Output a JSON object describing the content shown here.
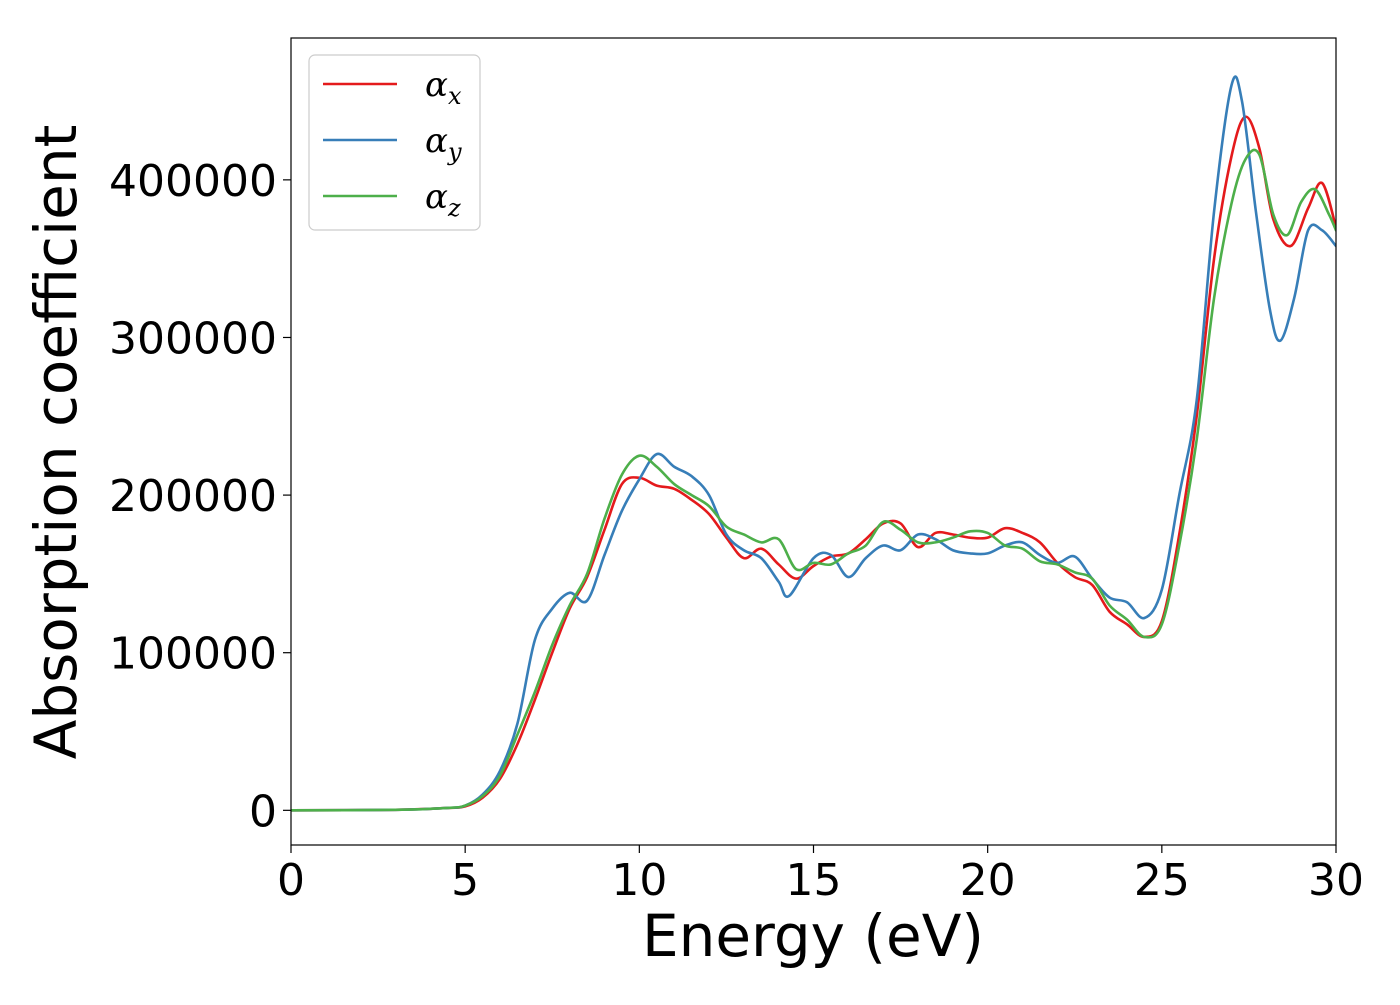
{
  "chart_data": {
    "type": "line",
    "title": "",
    "xlabel": "Energy (eV)",
    "ylabel": "Absorption coefficient",
    "xlim": [
      0,
      30
    ],
    "ylim": [
      -22000,
      490000
    ],
    "xticks": [
      0,
      5,
      10,
      15,
      20,
      25,
      30
    ],
    "xtick_labels": [
      "0",
      "5",
      "10",
      "15",
      "20",
      "25",
      "30"
    ],
    "yticks": [
      0,
      100000,
      200000,
      300000,
      400000
    ],
    "ytick_labels": [
      "0",
      "100000",
      "200000",
      "300000",
      "400000"
    ],
    "grid": false,
    "legend": {
      "position": "top-left"
    },
    "series": [
      {
        "name": "α_x",
        "label_base": "α",
        "label_sub": "x",
        "color": "#e41a1c",
        "points": [
          [
            0,
            0
          ],
          [
            3,
            300
          ],
          [
            4.5,
            1500
          ],
          [
            5,
            2500
          ],
          [
            5.5,
            8000
          ],
          [
            6,
            20000
          ],
          [
            6.5,
            42000
          ],
          [
            7,
            70000
          ],
          [
            7.5,
            100000
          ],
          [
            8,
            128000
          ],
          [
            8.5,
            148000
          ],
          [
            9,
            178000
          ],
          [
            9.5,
            207000
          ],
          [
            10,
            211000
          ],
          [
            10.5,
            206000
          ],
          [
            11,
            204000
          ],
          [
            11.5,
            197000
          ],
          [
            12,
            188000
          ],
          [
            12.5,
            173000
          ],
          [
            13,
            160000
          ],
          [
            13.5,
            166000
          ],
          [
            14,
            156000
          ],
          [
            14.5,
            147000
          ],
          [
            15,
            155000
          ],
          [
            15.5,
            161000
          ],
          [
            16,
            163000
          ],
          [
            16.5,
            172000
          ],
          [
            17,
            182000
          ],
          [
            17.5,
            182000
          ],
          [
            18,
            167000
          ],
          [
            18.5,
            176000
          ],
          [
            19,
            175000
          ],
          [
            19.5,
            173000
          ],
          [
            20,
            173000
          ],
          [
            20.5,
            179000
          ],
          [
            21,
            176000
          ],
          [
            21.5,
            170000
          ],
          [
            22,
            157000
          ],
          [
            22.5,
            148000
          ],
          [
            23,
            143000
          ],
          [
            23.5,
            126000
          ],
          [
            24,
            118000
          ],
          [
            24.5,
            110000
          ],
          [
            25,
            120000
          ],
          [
            25.5,
            175000
          ],
          [
            26,
            250000
          ],
          [
            26.5,
            350000
          ],
          [
            27,
            415000
          ],
          [
            27.4,
            440000
          ],
          [
            27.8,
            420000
          ],
          [
            28.2,
            375000
          ],
          [
            28.7,
            358000
          ],
          [
            29.2,
            382000
          ],
          [
            29.6,
            398000
          ],
          [
            30,
            370000
          ]
        ]
      },
      {
        "name": "α_y",
        "label_base": "α",
        "label_sub": "y",
        "color": "#377eb8",
        "points": [
          [
            0,
            0
          ],
          [
            3,
            300
          ],
          [
            4.5,
            1500
          ],
          [
            5,
            3000
          ],
          [
            5.5,
            10000
          ],
          [
            6,
            25000
          ],
          [
            6.5,
            55000
          ],
          [
            7,
            108000
          ],
          [
            7.5,
            128000
          ],
          [
            8,
            138000
          ],
          [
            8.5,
            133000
          ],
          [
            9,
            162000
          ],
          [
            9.5,
            190000
          ],
          [
            10,
            210000
          ],
          [
            10.5,
            226000
          ],
          [
            11,
            218000
          ],
          [
            11.5,
            212000
          ],
          [
            12,
            200000
          ],
          [
            12.5,
            175000
          ],
          [
            13,
            165000
          ],
          [
            13.5,
            160000
          ],
          [
            14,
            145000
          ],
          [
            14.3,
            136000
          ],
          [
            15,
            160000
          ],
          [
            15.5,
            162000
          ],
          [
            16,
            148000
          ],
          [
            16.5,
            160000
          ],
          [
            17,
            168000
          ],
          [
            17.5,
            165000
          ],
          [
            18,
            175000
          ],
          [
            18.5,
            172000
          ],
          [
            19,
            165000
          ],
          [
            19.5,
            163000
          ],
          [
            20,
            163000
          ],
          [
            20.5,
            168000
          ],
          [
            21,
            170000
          ],
          [
            21.5,
            162000
          ],
          [
            22,
            157000
          ],
          [
            22.5,
            161000
          ],
          [
            23,
            147000
          ],
          [
            23.5,
            135000
          ],
          [
            24,
            132000
          ],
          [
            24.5,
            122000
          ],
          [
            25,
            140000
          ],
          [
            25.5,
            200000
          ],
          [
            26,
            260000
          ],
          [
            26.5,
            380000
          ],
          [
            27,
            460000
          ],
          [
            27.3,
            450000
          ],
          [
            27.7,
            380000
          ],
          [
            28.1,
            318000
          ],
          [
            28.4,
            298000
          ],
          [
            28.8,
            325000
          ],
          [
            29.2,
            368000
          ],
          [
            29.6,
            368000
          ],
          [
            30,
            358000
          ]
        ]
      },
      {
        "name": "α_z",
        "label_base": "α",
        "label_sub": "z",
        "color": "#4daf4a",
        "points": [
          [
            0,
            0
          ],
          [
            3,
            300
          ],
          [
            4.5,
            1500
          ],
          [
            5,
            3000
          ],
          [
            5.5,
            9000
          ],
          [
            6,
            22000
          ],
          [
            6.5,
            48000
          ],
          [
            7,
            75000
          ],
          [
            7.5,
            105000
          ],
          [
            8,
            130000
          ],
          [
            8.5,
            150000
          ],
          [
            9,
            185000
          ],
          [
            9.5,
            213000
          ],
          [
            10,
            225000
          ],
          [
            10.5,
            218000
          ],
          [
            11,
            207000
          ],
          [
            11.5,
            200000
          ],
          [
            12,
            193000
          ],
          [
            12.5,
            180000
          ],
          [
            13,
            175000
          ],
          [
            13.5,
            170000
          ],
          [
            14,
            172000
          ],
          [
            14.5,
            153000
          ],
          [
            15,
            157000
          ],
          [
            15.5,
            156000
          ],
          [
            16,
            163000
          ],
          [
            16.5,
            168000
          ],
          [
            17,
            183000
          ],
          [
            17.5,
            178000
          ],
          [
            18,
            170000
          ],
          [
            18.5,
            170000
          ],
          [
            19,
            173000
          ],
          [
            19.5,
            177000
          ],
          [
            20,
            176000
          ],
          [
            20.5,
            168000
          ],
          [
            21,
            166000
          ],
          [
            21.5,
            158000
          ],
          [
            22,
            156000
          ],
          [
            22.5,
            151000
          ],
          [
            23,
            147000
          ],
          [
            23.5,
            130000
          ],
          [
            24,
            121000
          ],
          [
            24.5,
            110000
          ],
          [
            25,
            118000
          ],
          [
            25.5,
            168000
          ],
          [
            26,
            235000
          ],
          [
            26.5,
            325000
          ],
          [
            27,
            385000
          ],
          [
            27.4,
            413000
          ],
          [
            27.8,
            416000
          ],
          [
            28.2,
            378000
          ],
          [
            28.6,
            365000
          ],
          [
            29,
            386000
          ],
          [
            29.4,
            394000
          ],
          [
            29.8,
            378000
          ],
          [
            30,
            368000
          ]
        ]
      }
    ]
  }
}
